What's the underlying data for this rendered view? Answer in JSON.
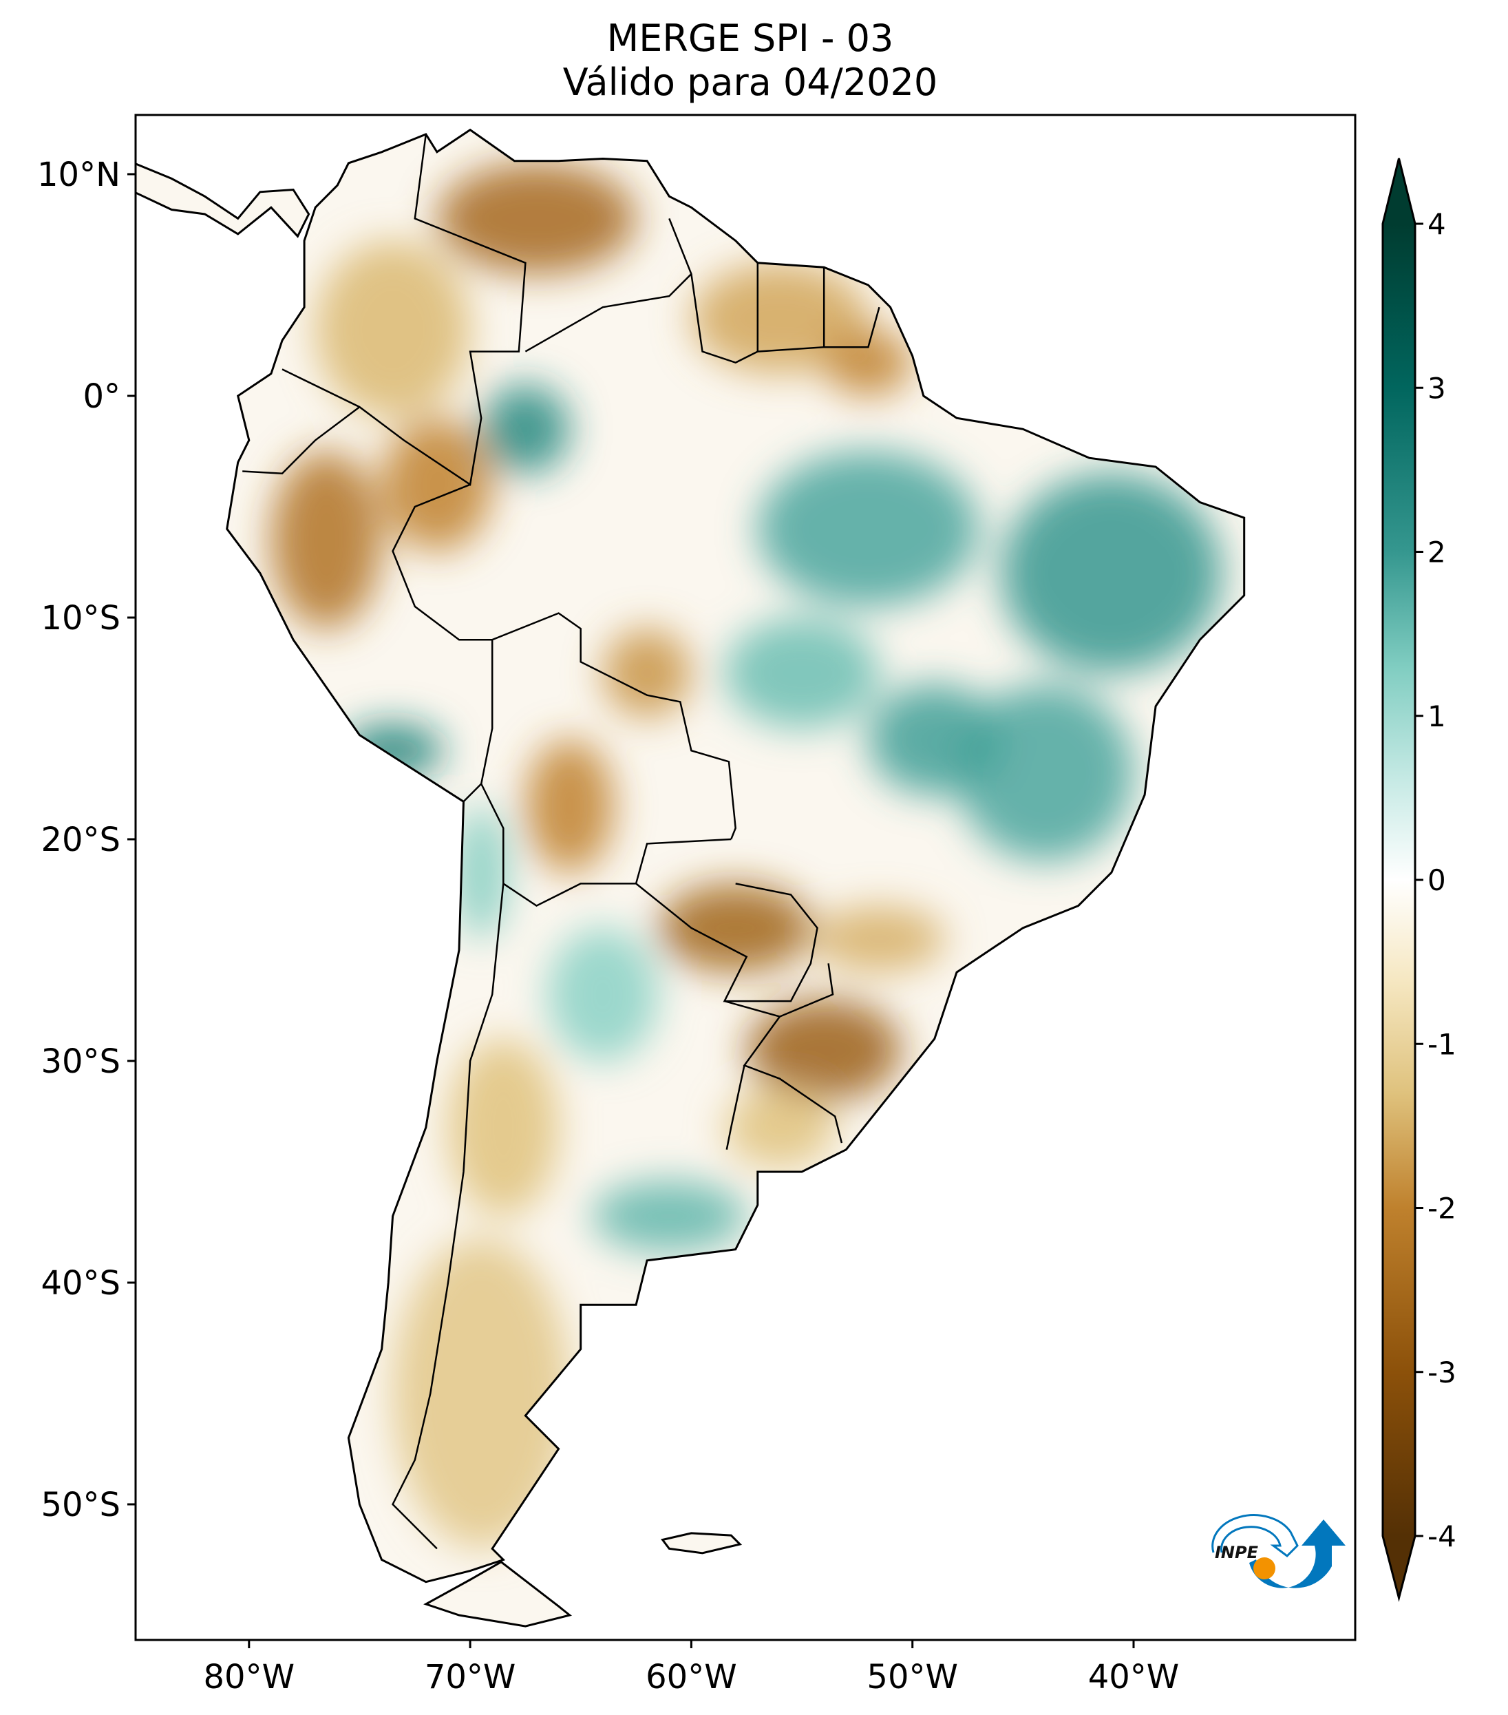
{
  "title": {
    "line1": "MERGE   SPI - 03",
    "line2": "Válido para 04/2020"
  },
  "chart_data": {
    "type": "heatmap",
    "variable": "SPI - 03",
    "source": "MERGE",
    "valid_for": "04/2020",
    "lon_range": [
      -85.1,
      -30.0
    ],
    "lat_range": [
      -56.2,
      12.7
    ],
    "x_ticks": [
      {
        "value": -80,
        "label": "80°W"
      },
      {
        "value": -70,
        "label": "70°W"
      },
      {
        "value": -60,
        "label": "60°W"
      },
      {
        "value": -50,
        "label": "50°W"
      },
      {
        "value": -40,
        "label": "40°W"
      }
    ],
    "y_ticks": [
      {
        "value": 10,
        "label": "10°N"
      },
      {
        "value": 0,
        "label": "0°"
      },
      {
        "value": -10,
        "label": "10°S"
      },
      {
        "value": -20,
        "label": "20°S"
      },
      {
        "value": -30,
        "label": "30°S"
      },
      {
        "value": -40,
        "label": "40°S"
      },
      {
        "value": -50,
        "label": "50°S"
      }
    ],
    "colorbar": {
      "range": [
        -4,
        4
      ],
      "ticks": [
        {
          "value": 4,
          "label": "4"
        },
        {
          "value": 3,
          "label": "3"
        },
        {
          "value": 2,
          "label": "2"
        },
        {
          "value": 1,
          "label": "1"
        },
        {
          "value": 0,
          "label": "0"
        },
        {
          "value": -1,
          "label": "-1"
        },
        {
          "value": -2,
          "label": "-2"
        },
        {
          "value": -3,
          "label": "-3"
        },
        {
          "value": -4,
          "label": "-4"
        }
      ],
      "stops": [
        {
          "v": -4,
          "c": "#543005"
        },
        {
          "v": -3,
          "c": "#8c510a"
        },
        {
          "v": -2,
          "c": "#bf812d"
        },
        {
          "v": -1.3,
          "c": "#dfc27d"
        },
        {
          "v": -0.6,
          "c": "#f6e8c3"
        },
        {
          "v": 0,
          "c": "#ffffff"
        },
        {
          "v": 0.6,
          "c": "#c7eae5"
        },
        {
          "v": 1.3,
          "c": "#80cdc1"
        },
        {
          "v": 2,
          "c": "#35978f"
        },
        {
          "v": 3,
          "c": "#01665e"
        },
        {
          "v": 4,
          "c": "#003c30"
        }
      ]
    },
    "anomaly_regions": [
      {
        "name": "venezuela",
        "lon": -67,
        "lat": 8,
        "rlon": 4.5,
        "rlat": 2.5,
        "spi": -2.5
      },
      {
        "name": "colombia",
        "lon": -73.5,
        "lat": 3,
        "rlon": 3.5,
        "rlat": 4,
        "spi": -1.4
      },
      {
        "name": "peru-north",
        "lon": -76.5,
        "lat": -6.5,
        "rlon": 2.5,
        "rlat": 4,
        "spi": -2.3
      },
      {
        "name": "peru-amazon",
        "lon": -71.5,
        "lat": -4,
        "rlon": 2.5,
        "rlat": 3,
        "spi": -2.0
      },
      {
        "name": "guianas",
        "lon": -56,
        "lat": 3.5,
        "rlon": 4,
        "rlat": 2.5,
        "spi": -1.6
      },
      {
        "name": "amapa",
        "lon": -52,
        "lat": 1.5,
        "rlon": 2,
        "rlat": 1.5,
        "spi": -2.0
      },
      {
        "name": "bolivia",
        "lon": -65.5,
        "lat": -18.5,
        "rlon": 2,
        "rlat": 3,
        "spi": -2.0
      },
      {
        "name": "rondonia",
        "lon": -62,
        "lat": -12.5,
        "rlon": 2,
        "rlat": 2,
        "spi": -1.8
      },
      {
        "name": "paraguay",
        "lon": -58,
        "lat": -24,
        "rlon": 3.5,
        "rlat": 2,
        "spi": -2.6
      },
      {
        "name": "parana",
        "lon": -51.5,
        "lat": -24.5,
        "rlon": 3,
        "rlat": 1.5,
        "spi": -1.5
      },
      {
        "name": "rio-grande-do-sul",
        "lon": -54,
        "lat": -29.5,
        "rlon": 3.5,
        "rlat": 2.3,
        "spi": -2.7
      },
      {
        "name": "uruguay",
        "lon": -56,
        "lat": -33,
        "rlon": 2.5,
        "rlat": 1.8,
        "spi": -1.3
      },
      {
        "name": "patagonia",
        "lon": -69.5,
        "lat": -45,
        "rlon": 4,
        "rlat": 7,
        "spi": -1.2
      },
      {
        "name": "cuyo",
        "lon": -68.5,
        "lat": -33,
        "rlon": 2.5,
        "rlat": 4,
        "spi": -1.3
      },
      {
        "name": "brazil-northeast",
        "lon": -41,
        "lat": -8,
        "rlon": 5,
        "rlat": 4.5,
        "spi": 2.0
      },
      {
        "name": "para",
        "lon": -52,
        "lat": -6,
        "rlon": 5,
        "rlat": 3.5,
        "spi": 1.8
      },
      {
        "name": "minas-gerais",
        "lon": -44,
        "lat": -17,
        "rlon": 4,
        "rlat": 4,
        "spi": 1.8
      },
      {
        "name": "goias",
        "lon": -49,
        "lat": -15.5,
        "rlon": 3,
        "rlat": 2.5,
        "spi": 1.9
      },
      {
        "name": "mato-grosso",
        "lon": -55,
        "lat": -12.5,
        "rlon": 3.5,
        "rlat": 2.5,
        "spi": 1.5
      },
      {
        "name": "amazonas-west",
        "lon": -67.5,
        "lat": -1.5,
        "rlon": 2,
        "rlat": 2,
        "spi": 2.3
      },
      {
        "name": "peru-south-coast",
        "lon": -73.5,
        "lat": -16,
        "rlon": 2.3,
        "rlat": 1.2,
        "spi": 2.5
      },
      {
        "name": "chile-north",
        "lon": -69.5,
        "lat": -21.5,
        "rlon": 1.2,
        "rlat": 3,
        "spi": 1.3
      },
      {
        "name": "chaco",
        "lon": -64,
        "lat": -27,
        "rlon": 2.5,
        "rlat": 3,
        "spi": 1.2
      },
      {
        "name": "buenos-aires",
        "lon": -61,
        "lat": -37,
        "rlon": 3.5,
        "rlat": 1.6,
        "spi": 1.6
      }
    ]
  },
  "logo": {
    "text": "INPE"
  }
}
